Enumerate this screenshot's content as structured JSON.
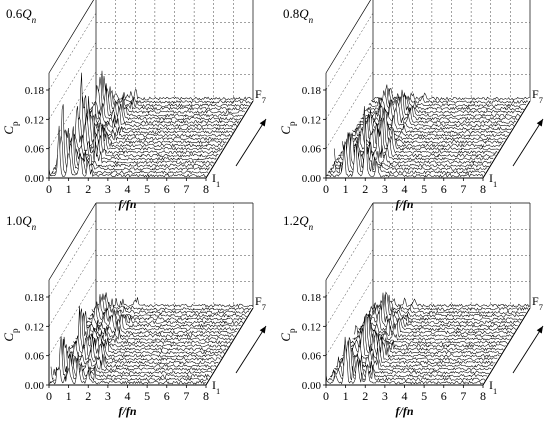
{
  "chart_data": [
    {
      "type": "line",
      "title": "0.6",
      "title_sub": "n",
      "title_q": "Q",
      "xlabel": "f/fn",
      "ylabel": "C",
      "ylabel_sub": "p",
      "xticks": [
        "0",
        "1",
        "2",
        "3",
        "4",
        "5",
        "6",
        "7",
        "8"
      ],
      "yticks": [
        "0.00",
        "0.06",
        "0.12",
        "0.18"
      ],
      "xlim": [
        0,
        8
      ],
      "ylim": [
        0,
        0.18
      ],
      "depth_start": "I",
      "depth_start_sub": "1",
      "depth_end": "F",
      "depth_end_sub": "7",
      "series_count": 24,
      "peaks": [
        {
          "x": 0.5,
          "amp": 0.19
        },
        {
          "x": 1.0,
          "amp": 0.12
        },
        {
          "x": 1.6,
          "amp": 0.08
        },
        {
          "x": 2.0,
          "amp": 0.07
        }
      ]
    },
    {
      "type": "line",
      "title": "0.8",
      "title_sub": "n",
      "title_q": "Q",
      "xlabel": "f/fn",
      "ylabel": "C",
      "ylabel_sub": "p",
      "xticks": [
        "0",
        "1",
        "2",
        "3",
        "4",
        "5",
        "6",
        "7",
        "8"
      ],
      "yticks": [
        "0.00",
        "0.06",
        "0.12",
        "0.18"
      ],
      "xlim": [
        0,
        8
      ],
      "ylim": [
        0,
        0.18
      ],
      "depth_start": "I",
      "depth_start_sub": "1",
      "depth_end": "F",
      "depth_end_sub": "7",
      "series_count": 24,
      "peaks": [
        {
          "x": 0.9,
          "amp": 0.1
        },
        {
          "x": 1.5,
          "amp": 0.08
        },
        {
          "x": 2.0,
          "amp": 0.13
        },
        {
          "x": 2.6,
          "amp": 0.06
        }
      ]
    },
    {
      "type": "line",
      "title": "1.0",
      "title_sub": "n",
      "title_q": "Q",
      "xlabel": "f/fn",
      "ylabel": "C",
      "ylabel_sub": "p",
      "xticks": [
        "0",
        "1",
        "2",
        "3",
        "4",
        "5",
        "6",
        "7",
        "8"
      ],
      "yticks": [
        "0.00",
        "0.06",
        "0.12",
        "0.18"
      ],
      "xlim": [
        0,
        8
      ],
      "ylim": [
        0,
        0.18
      ],
      "depth_start": "I",
      "depth_start_sub": "1",
      "depth_end": "F",
      "depth_end_sub": "7",
      "series_count": 24,
      "peaks": [
        {
          "x": 0.5,
          "amp": 0.12
        },
        {
          "x": 1.0,
          "amp": 0.07
        },
        {
          "x": 1.5,
          "amp": 0.06
        },
        {
          "x": 2.0,
          "amp": 0.05
        }
      ]
    },
    {
      "type": "line",
      "title": "1.2",
      "title_sub": "n",
      "title_q": "Q",
      "xlabel": "f/fn",
      "ylabel": "C",
      "ylabel_sub": "p",
      "xticks": [
        "0",
        "1",
        "2",
        "3",
        "4",
        "5",
        "6",
        "7",
        "8"
      ],
      "yticks": [
        "0.00",
        "0.06",
        "0.12",
        "0.18"
      ],
      "xlim": [
        0,
        8
      ],
      "ylim": [
        0,
        0.18
      ],
      "depth_start": "I",
      "depth_start_sub": "1",
      "depth_end": "F",
      "depth_end_sub": "7",
      "series_count": 24,
      "peaks": [
        {
          "x": 0.5,
          "amp": 0.05
        },
        {
          "x": 1.0,
          "amp": 0.13
        },
        {
          "x": 1.6,
          "amp": 0.07
        },
        {
          "x": 2.1,
          "amp": 0.06
        }
      ]
    }
  ]
}
